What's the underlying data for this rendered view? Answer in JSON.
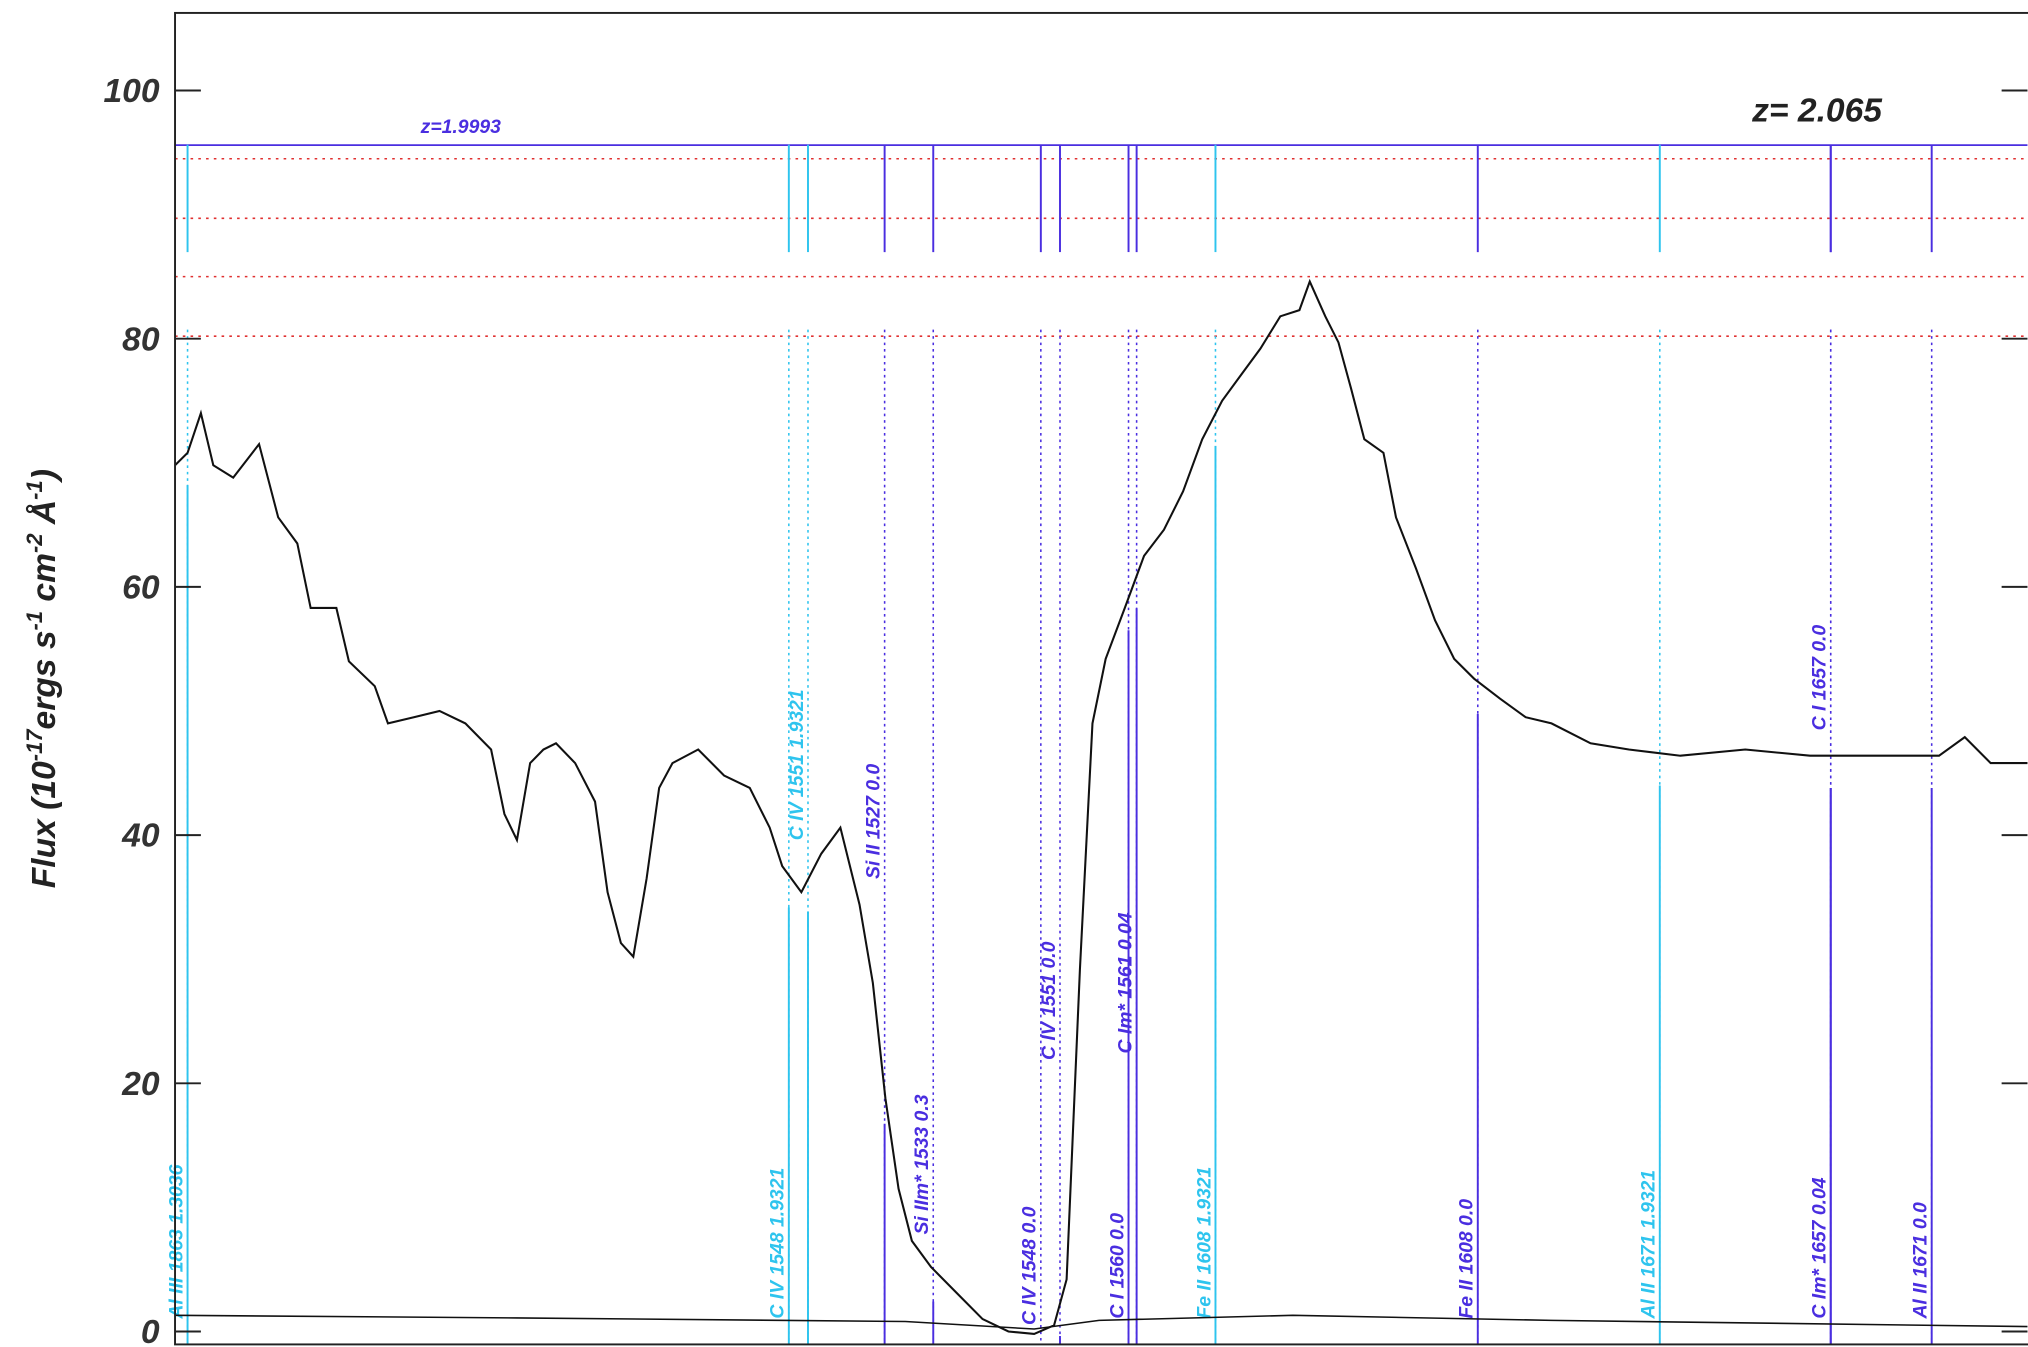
{
  "chart_data": {
    "type": "line",
    "ylabel": [
      "Flux (10",
      "-17",
      "ergs s",
      "-1",
      " cm",
      "-2",
      " Å",
      "-1",
      ")"
    ],
    "annotations": [
      {
        "text": "z=1.9993",
        "color": "#4a2ee0"
      },
      {
        "text": "z= 2.065",
        "color": "#222222"
      }
    ],
    "xlim": [
      1430.5,
      1681.9
    ],
    "ylim": [
      -1.04,
      106.25
    ],
    "yticks": [
      0,
      20,
      40,
      60,
      80,
      100
    ],
    "series": [
      {
        "color": "#111111",
        "x": [
          1430.5,
          1432.2,
          1434.0,
          1435.7,
          1438.4,
          1441.9,
          1444.5,
          1447.1,
          1448.9,
          1452.4,
          1454.1,
          1457.6,
          1459.4,
          1462.9,
          1466.4,
          1469.9,
          1473.4,
          1475.2,
          1476.9,
          1478.7,
          1480.5,
          1482.2,
          1484.8,
          1487.5,
          1489.2,
          1491.0,
          1492.7,
          1494.5,
          1496.2,
          1498.0,
          1501.5,
          1505.0,
          1508.5,
          1511.2,
          1512.9,
          1515.5,
          1518.2,
          1520.8,
          1523.4,
          1525.2,
          1526.9,
          1528.7,
          1530.5,
          1533.1,
          1536.6,
          1540.1,
          1543.6,
          1547.1,
          1549.8,
          1551.5,
          1553.3,
          1555.0,
          1556.8,
          1559.4,
          1562.0,
          1564.7,
          1567.3,
          1569.9,
          1572.6,
          1575.2,
          1577.8,
          1580.5,
          1583.1,
          1584.5,
          1586.6,
          1588.4,
          1590.1,
          1591.9,
          1594.5,
          1596.2,
          1598.9,
          1601.5,
          1604.1,
          1606.8,
          1610.3,
          1613.8,
          1617.3,
          1622.6,
          1627.8,
          1634.8,
          1643.6,
          1652.4,
          1661.2,
          1669.9,
          1673.4,
          1676.9,
          1681.9
        ],
        "values": [
          69.8,
          70.8,
          74,
          69.8,
          68.8,
          71.5,
          65.6,
          63.5,
          58.3,
          58.3,
          54,
          52,
          49,
          49.5,
          50,
          49,
          46.9,
          41.7,
          39.6,
          45.8,
          46.9,
          47.4,
          45.8,
          42.7,
          35.4,
          31.3,
          30.2,
          36.5,
          43.8,
          45.8,
          46.9,
          44.8,
          43.8,
          40.6,
          37.5,
          35.4,
          38.5,
          40.6,
          34.4,
          28.1,
          18.8,
          11.5,
          7.3,
          5.2,
          3.1,
          1.0,
          0,
          -0.2,
          0.5,
          4.2,
          29.2,
          49,
          54.2,
          58.3,
          62.5,
          64.6,
          67.7,
          71.9,
          75,
          77.1,
          79.2,
          81.8,
          82.3,
          84.6,
          81.8,
          79.7,
          76,
          71.9,
          70.8,
          65.6,
          61.5,
          57.3,
          54.2,
          52.6,
          51,
          49.5,
          49,
          47.4,
          46.9,
          46.4,
          46.9,
          46.4,
          46.4,
          46.4,
          47.9,
          45.8,
          45.8
        ]
      },
      {
        "color": "#111111",
        "x": [
          1430.5,
          1476.9,
          1529.6,
          1547.1,
          1555.9,
          1582.2,
          1617.3,
          1681.9
        ],
        "values": [
          1.3,
          1.1,
          0.8,
          0.2,
          0.9,
          1.3,
          0.9,
          0.4
        ]
      }
    ],
    "hlines": [
      {
        "value": 95.6,
        "color": "#4a2ee0",
        "style": "solid"
      },
      {
        "value": 94.5,
        "color": "#e03030",
        "style": "dotted"
      },
      {
        "value": 89.7,
        "color": "#e03030",
        "style": "dotted"
      },
      {
        "value": 85.0,
        "color": "#e03030",
        "style": "dotted"
      },
      {
        "value": 80.2,
        "color": "#e03030",
        "style": "dotted"
      }
    ],
    "lines": [
      {
        "label": "Al III 1863 1.3036",
        "x": 1432.2,
        "color": "#2ec4ee"
      },
      {
        "label": "C IV 1548 1.9321",
        "x": 1513.8,
        "color": "#2ec4ee"
      },
      {
        "label": "C IV 1551 1.9321",
        "x": 1516.4,
        "color": "#2ec4ee"
      },
      {
        "label": "Si II 1527 0.0",
        "x": 1526.8,
        "color": "#4a2ee0"
      },
      {
        "label": "Si IIm* 1533 0.3",
        "x": 1533.4,
        "color": "#4a2ee0"
      },
      {
        "label": "C IV 1548 0.0",
        "x": 1548,
        "color": "#4a2ee0"
      },
      {
        "label": "C IV 1551 0.0",
        "x": 1550.6,
        "color": "#4a2ee0"
      },
      {
        "label": "C I 1560 0.0",
        "x": 1559.9,
        "color": "#4a2ee0"
      },
      {
        "label": "C Im* 1561 0.04",
        "x": 1561.0,
        "color": "#4a2ee0"
      },
      {
        "label": "Fe II 1608 1.9321",
        "x": 1571.7,
        "color": "#2ec4ee"
      },
      {
        "label": "Fe II 1608 0.0",
        "x": 1607.3,
        "color": "#4a2ee0"
      },
      {
        "label": "Al II 1671 1.9321",
        "x": 1632.0,
        "color": "#2ec4ee"
      },
      {
        "label": "C I 1657 0.0",
        "x": 1655.2,
        "color": "#4a2ee0"
      },
      {
        "label": "C Im* 1657 0.04",
        "x": 1655.2,
        "color": "#4a2ee0"
      },
      {
        "label": "Al II 1671 0.0",
        "x": 1668.9,
        "color": "#4a2ee0"
      }
    ]
  }
}
